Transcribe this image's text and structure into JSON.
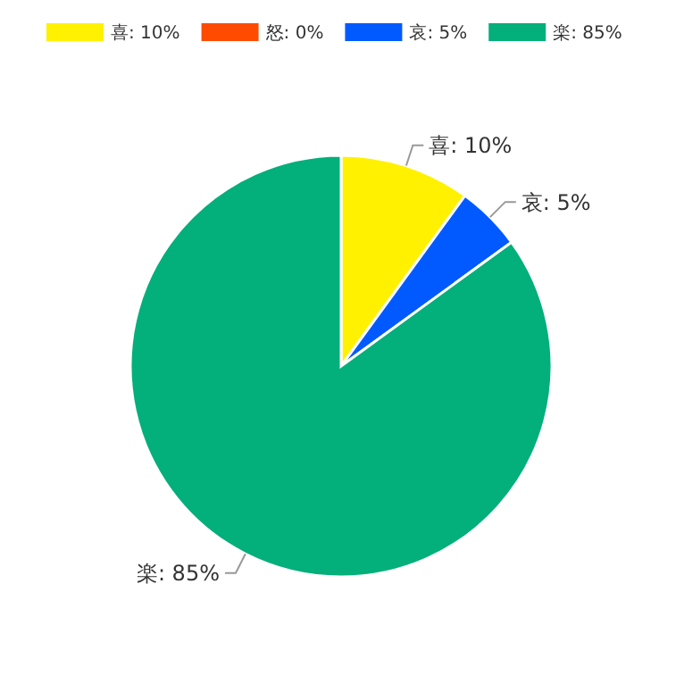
{
  "chart_data": {
    "type": "pie",
    "categories": [
      "喜",
      "怒",
      "哀",
      "楽"
    ],
    "values": [
      10,
      0,
      5,
      85
    ],
    "colors": [
      "#fff100",
      "#ff4b00",
      "#005aff",
      "#03af7a"
    ],
    "value_labels": [
      "10%",
      "0%",
      "5%",
      "85%"
    ],
    "legend": "top"
  }
}
